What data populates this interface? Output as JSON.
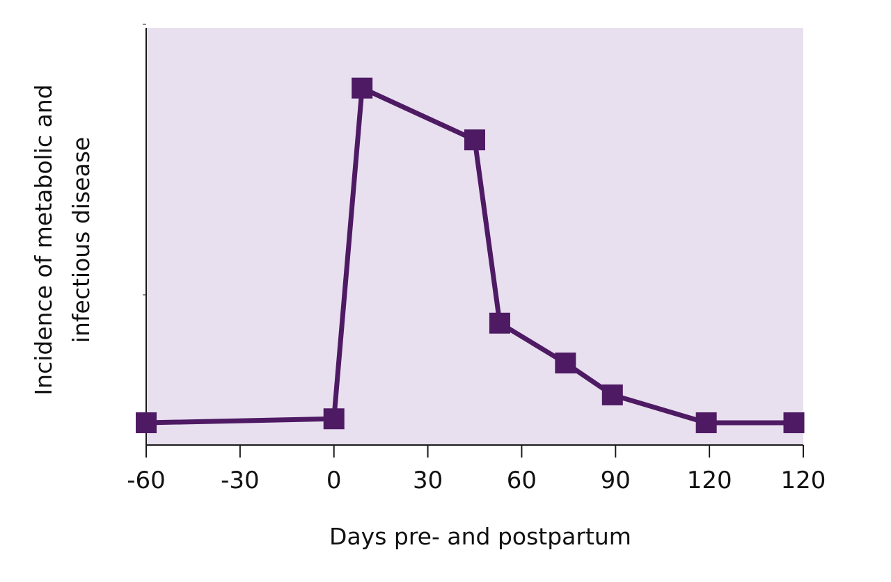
{
  "chart_data": {
    "type": "line",
    "title": "",
    "xlabel": "Days pre- and postpartum",
    "ylabel_lines": [
      "Incidence of metabolic and",
      "infectious disease"
    ],
    "x_ticks": [
      "-60",
      "-30",
      "0",
      "30",
      "60",
      "90",
      "120",
      "120"
    ],
    "xlim": [
      -60,
      150
    ],
    "ylim": [
      0,
      100
    ],
    "y_tick_values": [
      0,
      100
    ],
    "y_ticks_labeled": false,
    "grid": false,
    "legend": "none",
    "series": [
      {
        "x": [
          -60,
          0,
          9,
          45,
          53,
          74,
          89,
          119,
          147
        ],
        "y": [
          0,
          1,
          84,
          71,
          25,
          15,
          7,
          0,
          0
        ]
      }
    ],
    "colors": {
      "plot_background": "#e8e0ef",
      "line": "#4e1a63",
      "marker": "#4e1a63",
      "axis": "#1a1a1a"
    },
    "marker": "square"
  }
}
